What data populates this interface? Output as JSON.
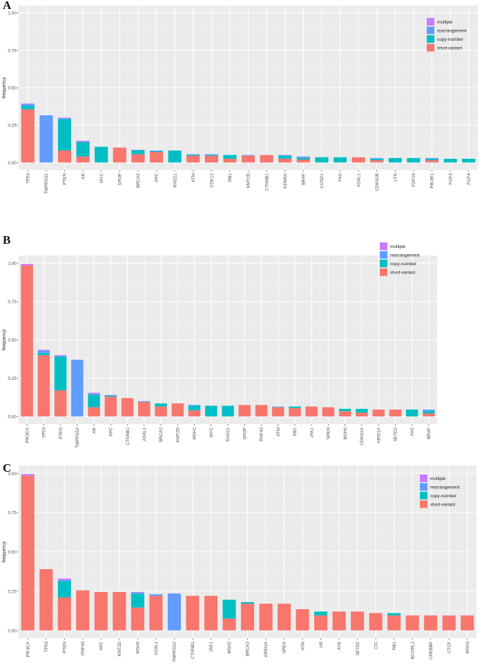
{
  "colors": {
    "multiple": "#C77CFF",
    "rearrangement": "#619CFF",
    "copy-number": "#00BFC4",
    "short-variant": "#F8766D",
    "panel_bg": "#EBEBEB",
    "grid": "#FFFFFF"
  },
  "chart_data": [
    {
      "panel": "A",
      "type": "bar",
      "stacked": true,
      "xlabel": "",
      "ylabel": "frequency",
      "ylim": [
        0,
        1.0
      ],
      "yticks": [
        "0.00",
        "0.25",
        "0.50",
        "0.75",
        "1.00"
      ],
      "legend_position": "top-right",
      "categories": [
        "TP53",
        "TMPRSS2",
        "PTEN",
        "AR",
        "MYC",
        "SPOP",
        "BRCA2",
        "APC",
        "RAD21",
        "ATM",
        "CDK12",
        "RB1",
        "KMT2D",
        "CTNNB1",
        "KDM6A",
        "BRAF",
        "CCND1",
        "FAS",
        "ASXL1",
        "CDKN1B",
        "LYN",
        "FGF19",
        "PIK3R1",
        "FGF3",
        "FGF4"
      ],
      "series": [
        {
          "name": "short-variant",
          "values": [
            0.355,
            0,
            0.08,
            0.04,
            0,
            0.1,
            0.055,
            0.07,
            0,
            0.045,
            0.045,
            0.025,
            0.045,
            0.05,
            0.025,
            0.02,
            0,
            0,
            0.035,
            0.015,
            0,
            0,
            0.015,
            0,
            0
          ]
        },
        {
          "name": "copy-number",
          "values": [
            0.025,
            0,
            0.21,
            0.095,
            0.105,
            0,
            0.025,
            0.005,
            0.08,
            0.005,
            0.005,
            0.025,
            0,
            0,
            0.02,
            0.01,
            0.035,
            0.035,
            0,
            0.01,
            0.03,
            0.03,
            0.01,
            0.025,
            0.025
          ]
        },
        {
          "name": "rearrangement",
          "values": [
            0.01,
            0.315,
            0.005,
            0.005,
            0,
            0,
            0.005,
            0.005,
            0,
            0.005,
            0.005,
            0,
            0.005,
            0,
            0.005,
            0.01,
            0,
            0,
            0,
            0.005,
            0,
            0,
            0.005,
            0,
            0
          ]
        },
        {
          "name": "multiple",
          "values": [
            0.005,
            0,
            0.005,
            0.005,
            0,
            0,
            0,
            0,
            0,
            0,
            0,
            0,
            0,
            0,
            0,
            0,
            0,
            0,
            0,
            0,
            0,
            0,
            0,
            0,
            0
          ]
        }
      ],
      "legend": [
        "multiple",
        "rearrangement",
        "copy-number",
        "short-variant"
      ]
    },
    {
      "panel": "B",
      "type": "bar",
      "stacked": true,
      "xlabel": "",
      "ylabel": "frequency",
      "ylim": [
        0,
        1.0
      ],
      "yticks": [
        "0.00",
        "0.25",
        "0.50",
        "0.75",
        "1.00"
      ],
      "legend_position": "top-right",
      "categories": [
        "PIK3CA",
        "TP53",
        "PTEN",
        "TMPRSS2",
        "AR",
        "APC",
        "CTNNB1",
        "ASXL1",
        "BRCA2",
        "KMT2D",
        "MSH2",
        "MYC",
        "RAD21",
        "SPOP",
        "RNF43",
        "ATM",
        "RB1",
        "JAK1",
        "SPEN",
        "MSH6",
        "CDKN2A",
        "ARID1A",
        "SETD2",
        "FAS",
        "BRAF"
      ],
      "series": [
        {
          "name": "short-variant",
          "values": [
            0.985,
            0.4,
            0.17,
            0,
            0.06,
            0.13,
            0.12,
            0.095,
            0.065,
            0.085,
            0.04,
            0,
            0,
            0.075,
            0.075,
            0.06,
            0.055,
            0.065,
            0.06,
            0.035,
            0.025,
            0.045,
            0.045,
            0,
            0.02
          ]
        },
        {
          "name": "copy-number",
          "values": [
            0,
            0.015,
            0.22,
            0,
            0.08,
            0.005,
            0,
            0,
            0.02,
            0,
            0.03,
            0.07,
            0.07,
            0,
            0,
            0,
            0.01,
            0,
            0,
            0.015,
            0.025,
            0,
            0,
            0.045,
            0.015
          ]
        },
        {
          "name": "rearrangement",
          "values": [
            0,
            0.015,
            0.005,
            0.37,
            0.01,
            0.005,
            0,
            0.005,
            0,
            0,
            0.005,
            0,
            0,
            0,
            0,
            0.005,
            0,
            0,
            0,
            0,
            0,
            0,
            0,
            0,
            0.01
          ]
        },
        {
          "name": "multiple",
          "values": [
            0.01,
            0.005,
            0.005,
            0,
            0.005,
            0,
            0,
            0,
            0,
            0,
            0,
            0,
            0,
            0,
            0,
            0,
            0,
            0,
            0,
            0,
            0,
            0,
            0,
            0,
            0
          ]
        }
      ],
      "legend": [
        "multiple",
        "rearrangement",
        "copy-number",
        "short-variant"
      ]
    },
    {
      "panel": "C",
      "type": "bar",
      "stacked": true,
      "xlabel": "",
      "ylabel": "frequency",
      "ylim": [
        0,
        1.0
      ],
      "yticks": [
        "0.00",
        "0.25",
        "0.50",
        "0.75",
        "1.00"
      ],
      "legend_position": "top-right",
      "categories": [
        "PIK3CA",
        "TP53",
        "PTEN",
        "RNF43",
        "APC",
        "KMT2D",
        "MSH6",
        "ASXL1",
        "TMPRSS2",
        "CTNNB1",
        "JAK1",
        "MSH2",
        "BRCA2",
        "ARID1A",
        "SPEN",
        "ATM",
        "AR",
        "ATR",
        "SETD2",
        "CIC",
        "RB1",
        "BCORL1",
        "CREBBP",
        "CTCF",
        "MSH3"
      ],
      "series": [
        {
          "name": "short-variant",
          "values": [
            0.985,
            0.39,
            0.21,
            0.255,
            0.245,
            0.245,
            0.145,
            0.22,
            0,
            0.22,
            0.22,
            0.075,
            0.17,
            0.17,
            0.17,
            0.135,
            0.095,
            0.12,
            0.12,
            0.11,
            0.095,
            0.095,
            0.095,
            0.095,
            0.095
          ]
        },
        {
          "name": "copy-number",
          "values": [
            0,
            0,
            0.105,
            0,
            0,
            0,
            0.09,
            0,
            0,
            0,
            0,
            0.12,
            0.01,
            0,
            0,
            0,
            0.025,
            0,
            0,
            0,
            0.015,
            0,
            0,
            0,
            0
          ]
        },
        {
          "name": "rearrangement",
          "values": [
            0,
            0,
            0.005,
            0,
            0,
            0,
            0.005,
            0.01,
            0.235,
            0,
            0,
            0,
            0,
            0,
            0,
            0,
            0,
            0,
            0,
            0,
            0,
            0,
            0,
            0,
            0
          ]
        },
        {
          "name": "multiple",
          "values": [
            0.01,
            0,
            0.01,
            0,
            0,
            0,
            0.005,
            0,
            0,
            0,
            0,
            0,
            0,
            0,
            0,
            0,
            0,
            0,
            0,
            0,
            0,
            0,
            0,
            0,
            0
          ]
        }
      ],
      "legend": [
        "multiple",
        "rearrangement",
        "copy-number",
        "short-variant"
      ]
    }
  ]
}
